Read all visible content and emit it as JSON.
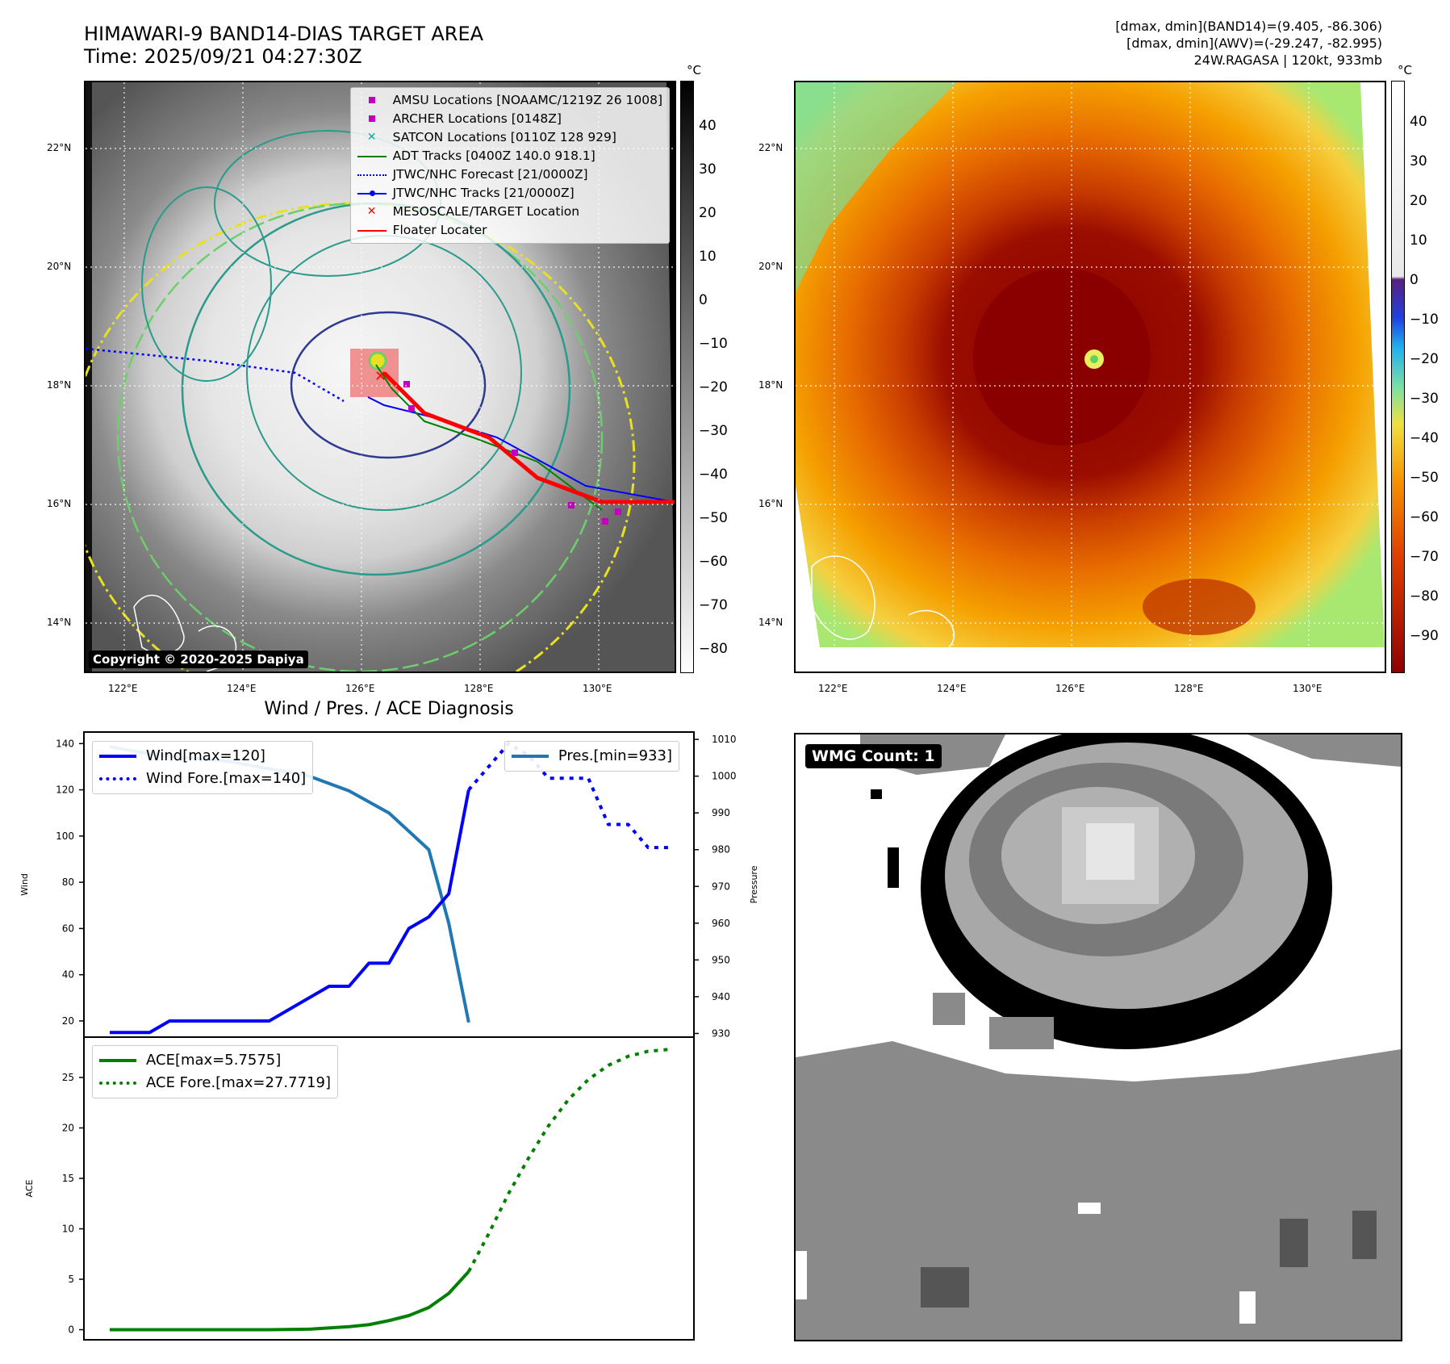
{
  "header": {
    "title_line1": "HIMAWARI-9 BAND14-DIAS TARGET AREA",
    "title_line2": "Time: 2025/09/21 04:27:30Z",
    "right_line1": "[dmax, dmin](BAND14)=(9.405, -86.306)",
    "right_line2": "[dmax, dmin](AWV)=(-29.247, -82.995)",
    "right_line3": "24W.RAGASA | 120kt, 933mb"
  },
  "map_axes": {
    "lon_labels": [
      "122°E",
      "124°E",
      "126°E",
      "128°E",
      "130°E"
    ],
    "lat_labels": [
      "22°N",
      "20°N",
      "18°N",
      "16°N",
      "14°N"
    ]
  },
  "colorbar_left": {
    "unit": "°C",
    "ticks": [
      "40",
      "30",
      "20",
      "10",
      "0",
      "−10",
      "−20",
      "−30",
      "−40",
      "−50",
      "−60",
      "−70",
      "−80"
    ]
  },
  "colorbar_right": {
    "unit": "°C",
    "ticks": [
      "40",
      "30",
      "20",
      "10",
      "0",
      "−10",
      "−20",
      "−30",
      "−40",
      "−50",
      "−60",
      "−70",
      "−80",
      "−90"
    ]
  },
  "legend_map": [
    "AMSU Locations [NOAAMC/1219Z 26 1008]",
    "ARCHER Locations [0148Z]",
    "SATCON Locations [0110Z 128 929]",
    "ADT Tracks [0400Z 140.0 918.1]",
    "JTWC/NHC Forecast [21/0000Z]",
    "JTWC/NHC Tracks [21/0000Z]",
    "MESOSCALE/TARGET Location",
    "Floater Locater"
  ],
  "colors": {
    "amsu": "#c000c0",
    "archer": "#c000c0",
    "satcon": "#00b0b0",
    "adt": "#008000",
    "forecast": "#0000ff",
    "tracks": "#0000ff",
    "target": "#ff0000",
    "floater": "#ff0000",
    "wind": "#0000ff",
    "pressure": "#1f77b4",
    "ace": "#008000"
  },
  "copyright": "Copyright © 2020-2025 Dapiya",
  "wmg_label": "WMG Count: 1",
  "diagnosis_title": "Wind / Pres. / ACE Diagnosis",
  "chart_data": [
    {
      "type": "line",
      "title": "Wind / Pres. / ACE Diagnosis",
      "ylabel": "Wind",
      "y2label": "Pressure",
      "ylim": [
        13,
        145
      ],
      "y2lim": [
        929,
        1012
      ],
      "xlim": [
        0,
        28
      ],
      "yticks": [
        "20",
        "40",
        "60",
        "80",
        "100",
        "120",
        "140"
      ],
      "y2ticks": [
        "930",
        "940",
        "950",
        "960",
        "970",
        "980",
        "990",
        "1000",
        "1010"
      ],
      "legend_left": [
        "Wind[max=120]",
        "Wind Fore.[max=140]"
      ],
      "legend_right": [
        "Pres.[min=933]"
      ],
      "series": [
        {
          "name": "Wind[max=120]",
          "style": "solid",
          "axis": "left",
          "x": [
            0,
            2,
            3,
            6,
            8,
            10,
            11,
            12,
            13,
            14,
            15,
            16,
            17,
            18
          ],
          "values": [
            15,
            15,
            20,
            20,
            20,
            30,
            35,
            35,
            45,
            45,
            60,
            65,
            75,
            120
          ]
        },
        {
          "name": "Wind Fore.[max=140]",
          "style": "dotted",
          "axis": "left",
          "x": [
            18,
            20,
            21,
            22,
            24,
            25,
            26,
            27,
            28
          ],
          "values": [
            120,
            140,
            135,
            125,
            125,
            105,
            105,
            95,
            95
          ]
        },
        {
          "name": "Pres.[min=933]",
          "style": "solid",
          "axis": "right",
          "x": [
            0,
            2,
            4,
            6,
            8,
            10,
            12,
            14,
            16,
            17,
            18
          ],
          "values": [
            1008,
            1006,
            1005,
            1004,
            1002,
            1000,
            996,
            990,
            980,
            960,
            933
          ]
        }
      ]
    },
    {
      "type": "line",
      "ylabel": "ACE",
      "ylim": [
        -1,
        29
      ],
      "xlim": [
        0,
        28
      ],
      "yticks": [
        "0",
        "5",
        "10",
        "15",
        "20",
        "25"
      ],
      "legend": [
        "ACE[max=5.7575]",
        "ACE Fore.[max=27.7719]"
      ],
      "series": [
        {
          "name": "ACE[max=5.7575]",
          "style": "solid",
          "x": [
            0,
            4,
            8,
            10,
            12,
            13,
            14,
            15,
            16,
            17,
            18
          ],
          "values": [
            0,
            0,
            0,
            0.05,
            0.3,
            0.5,
            0.9,
            1.4,
            2.2,
            3.6,
            5.76
          ]
        },
        {
          "name": "ACE Fore.[max=27.7719]",
          "style": "dotted",
          "x": [
            18,
            19,
            20,
            21,
            22,
            23,
            24,
            25,
            26,
            27,
            28
          ],
          "values": [
            5.76,
            9.5,
            13.5,
            17.0,
            20.2,
            22.8,
            24.8,
            26.2,
            27.1,
            27.6,
            27.77
          ]
        }
      ]
    }
  ]
}
